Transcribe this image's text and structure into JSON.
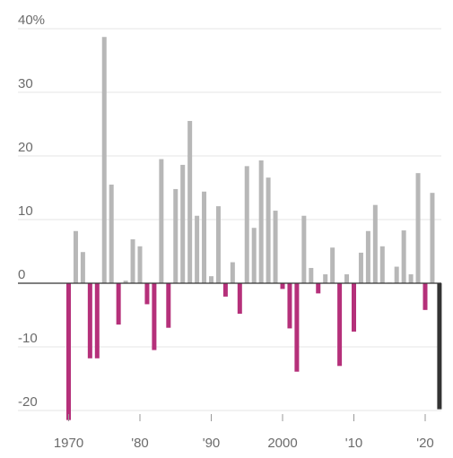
{
  "chart_data": {
    "type": "bar",
    "title": "",
    "xlabel": "",
    "ylabel": "",
    "ylim": [
      -21.5,
      40
    ],
    "y_ticks": [
      {
        "value": 40,
        "label": "40%"
      },
      {
        "value": 30,
        "label": "30"
      },
      {
        "value": 20,
        "label": "20"
      },
      {
        "value": 10,
        "label": "10"
      },
      {
        "value": 0,
        "label": "0"
      },
      {
        "value": -10,
        "label": "-10"
      },
      {
        "value": -20,
        "label": "-20"
      }
    ],
    "x_ticks": [
      {
        "year": 1970,
        "label": "1970"
      },
      {
        "year": 1980,
        "label": "'80"
      },
      {
        "year": 1990,
        "label": "'90"
      },
      {
        "year": 2000,
        "label": "2000"
      },
      {
        "year": 2010,
        "label": "'10"
      },
      {
        "year": 2020,
        "label": "'20"
      }
    ],
    "grid": true,
    "colors": {
      "positive": "#b7b7b7",
      "negative": "#b5307a",
      "highlight": "#333333",
      "grid": "#e6e6e6",
      "axis": "#333333",
      "tick_text": "#6b6b6b"
    },
    "highlight_year": 2022,
    "x": [
      1970,
      1971,
      1972,
      1973,
      1974,
      1975,
      1976,
      1977,
      1978,
      1979,
      1980,
      1981,
      1982,
      1983,
      1984,
      1985,
      1986,
      1987,
      1988,
      1989,
      1990,
      1991,
      1992,
      1993,
      1994,
      1995,
      1996,
      1997,
      1998,
      1999,
      2000,
      2001,
      2002,
      2003,
      2004,
      2005,
      2006,
      2007,
      2008,
      2009,
      2010,
      2011,
      2012,
      2013,
      2014,
      2015,
      2016,
      2017,
      2018,
      2019,
      2020,
      2021,
      2022
    ],
    "values": [
      -21.5,
      8.2,
      4.9,
      -11.8,
      -11.8,
      38.7,
      15.5,
      -6.5,
      0.4,
      6.9,
      5.8,
      -3.3,
      -10.5,
      19.5,
      -7.0,
      14.8,
      18.6,
      25.5,
      10.6,
      14.4,
      1.1,
      12.1,
      -2.1,
      3.3,
      -4.8,
      18.4,
      8.7,
      19.3,
      16.6,
      11.4,
      -0.9,
      -7.1,
      -13.9,
      10.6,
      2.4,
      -1.6,
      1.4,
      5.6,
      -13.0,
      1.4,
      -7.6,
      4.8,
      8.2,
      12.3,
      5.8,
      0.1,
      2.6,
      8.3,
      1.4,
      17.3,
      -4.2,
      14.2,
      -19.8
    ]
  }
}
